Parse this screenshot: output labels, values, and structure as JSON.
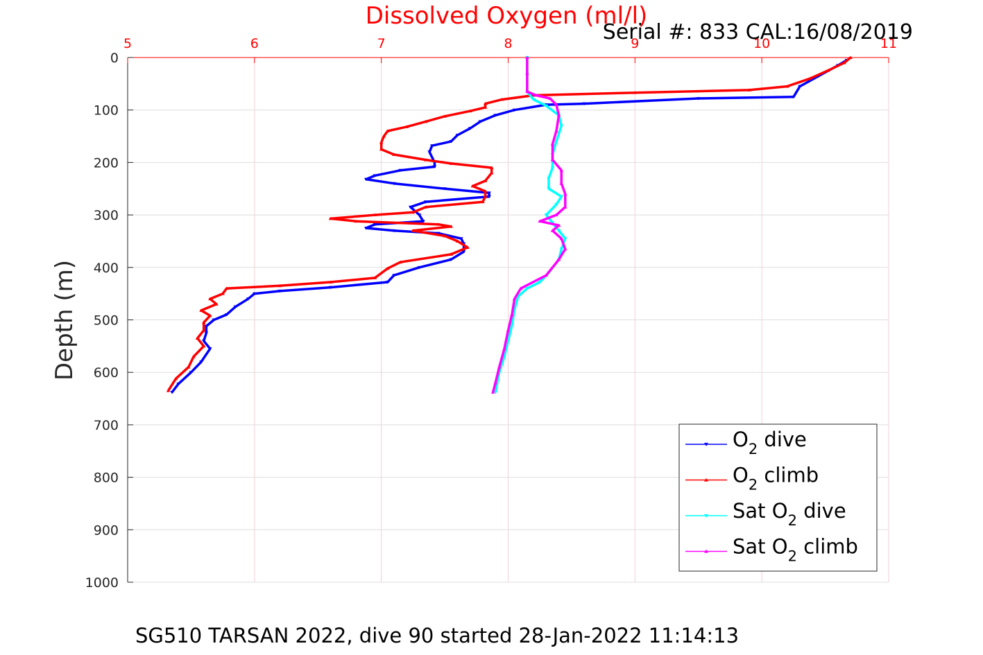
{
  "chart_data": {
    "type": "line",
    "title": "Dissolved Oxygen (ml/l)",
    "subtitle": "Serial #: 833  CAL:16/08/2019",
    "xlabel": "Dissolved Oxygen (ml/l)",
    "ylabel": "Depth (m)",
    "footer": "SG510 TARSAN 2022, dive 90 started 28-Jan-2022 11:14:13",
    "xlim": [
      5,
      11
    ],
    "ylim": [
      0,
      1000
    ],
    "y_reversed": true,
    "x_axis_position": "top",
    "x_ticks": [
      "5",
      "6",
      "7",
      "8",
      "9",
      "10",
      "11"
    ],
    "y_ticks": [
      "0",
      "100",
      "200",
      "300",
      "400",
      "500",
      "600",
      "700",
      "800",
      "900",
      "1000"
    ],
    "grid": true,
    "legend_position": "bottom-right",
    "legend": [
      {
        "prefix": "O",
        "sub": "2",
        "suffix": " dive",
        "color": "#0000ff",
        "marker": "down-triangle"
      },
      {
        "prefix": "O",
        "sub": "2",
        "suffix": " climb",
        "color": "#ff0000",
        "marker": "up-triangle"
      },
      {
        "prefix": "Sat O",
        "sub": "2",
        "suffix": " dive",
        "color": "#00ffff",
        "marker": "down-triangle"
      },
      {
        "prefix": "Sat O",
        "sub": "2",
        "suffix": " climb",
        "color": "#ff00ff",
        "marker": "up-triangle"
      }
    ],
    "series": [
      {
        "name": "O2 dive",
        "color": "#0000ff",
        "marker": "down-triangle",
        "points": [
          [
            10.67,
            5
          ],
          [
            10.6,
            15
          ],
          [
            10.45,
            35
          ],
          [
            10.3,
            55
          ],
          [
            10.25,
            75
          ],
          [
            9.5,
            78
          ],
          [
            8.6,
            88
          ],
          [
            8.3,
            90
          ],
          [
            8.05,
            100
          ],
          [
            7.9,
            110
          ],
          [
            7.78,
            122
          ],
          [
            7.7,
            135
          ],
          [
            7.6,
            148
          ],
          [
            7.55,
            160
          ],
          [
            7.4,
            168
          ],
          [
            7.38,
            180
          ],
          [
            7.42,
            200
          ],
          [
            7.42,
            208
          ],
          [
            7.15,
            215
          ],
          [
            6.95,
            225
          ],
          [
            6.88,
            232
          ],
          [
            7.1,
            240
          ],
          [
            7.5,
            250
          ],
          [
            7.85,
            258
          ],
          [
            7.85,
            265
          ],
          [
            7.35,
            275
          ],
          [
            7.23,
            285
          ],
          [
            7.3,
            300
          ],
          [
            7.33,
            312
          ],
          [
            6.95,
            318
          ],
          [
            6.88,
            325
          ],
          [
            7.1,
            330
          ],
          [
            7.45,
            335
          ],
          [
            7.63,
            345
          ],
          [
            7.65,
            355
          ],
          [
            7.65,
            370
          ],
          [
            7.55,
            385
          ],
          [
            7.3,
            400
          ],
          [
            7.1,
            415
          ],
          [
            7.05,
            428
          ],
          [
            6.6,
            438
          ],
          [
            6.2,
            445
          ],
          [
            6.0,
            450
          ],
          [
            5.95,
            460
          ],
          [
            5.85,
            475
          ],
          [
            5.78,
            490
          ],
          [
            5.68,
            500
          ],
          [
            5.62,
            512
          ],
          [
            5.62,
            525
          ],
          [
            5.6,
            540
          ],
          [
            5.65,
            555
          ],
          [
            5.58,
            580
          ],
          [
            5.5,
            600
          ],
          [
            5.4,
            622
          ],
          [
            5.35,
            638
          ]
        ]
      },
      {
        "name": "O2 climb",
        "color": "#ff0000",
        "marker": "up-triangle",
        "points": [
          [
            10.7,
            0
          ],
          [
            10.65,
            10
          ],
          [
            10.52,
            25
          ],
          [
            10.38,
            40
          ],
          [
            10.2,
            55
          ],
          [
            9.9,
            62
          ],
          [
            9.0,
            67
          ],
          [
            8.2,
            72
          ],
          [
            7.95,
            80
          ],
          [
            7.82,
            88
          ],
          [
            7.82,
            95
          ],
          [
            7.7,
            102
          ],
          [
            7.5,
            112
          ],
          [
            7.35,
            122
          ],
          [
            7.2,
            132
          ],
          [
            7.05,
            140
          ],
          [
            7.02,
            150
          ],
          [
            7.0,
            162
          ],
          [
            7.0,
            175
          ],
          [
            7.1,
            185
          ],
          [
            7.35,
            195
          ],
          [
            7.55,
            202
          ],
          [
            7.87,
            210
          ],
          [
            7.87,
            220
          ],
          [
            7.82,
            235
          ],
          [
            7.72,
            245
          ],
          [
            7.82,
            255
          ],
          [
            7.82,
            265
          ],
          [
            7.8,
            275
          ],
          [
            7.35,
            285
          ],
          [
            7.25,
            295
          ],
          [
            6.95,
            300
          ],
          [
            6.6,
            307
          ],
          [
            6.8,
            312
          ],
          [
            7.45,
            318
          ],
          [
            7.55,
            322
          ],
          [
            7.25,
            330
          ],
          [
            7.5,
            340
          ],
          [
            7.6,
            350
          ],
          [
            7.68,
            362
          ],
          [
            7.55,
            375
          ],
          [
            7.15,
            390
          ],
          [
            7.05,
            402
          ],
          [
            6.95,
            420
          ],
          [
            6.6,
            428
          ],
          [
            6.2,
            435
          ],
          [
            5.78,
            440
          ],
          [
            5.75,
            450
          ],
          [
            5.65,
            460
          ],
          [
            5.7,
            470
          ],
          [
            5.58,
            482
          ],
          [
            5.65,
            492
          ],
          [
            5.6,
            505
          ],
          [
            5.6,
            520
          ],
          [
            5.55,
            535
          ],
          [
            5.6,
            550
          ],
          [
            5.52,
            570
          ],
          [
            5.48,
            590
          ],
          [
            5.38,
            612
          ],
          [
            5.32,
            635
          ]
        ]
      },
      {
        "name": "Sat O2 dive",
        "color": "#00ffff",
        "marker": "down-triangle",
        "points": [
          [
            8.15,
            0
          ],
          [
            8.15,
            30
          ],
          [
            8.15,
            65
          ],
          [
            8.2,
            80
          ],
          [
            8.3,
            92
          ],
          [
            8.4,
            110
          ],
          [
            8.42,
            130
          ],
          [
            8.38,
            160
          ],
          [
            8.35,
            185
          ],
          [
            8.35,
            210
          ],
          [
            8.32,
            230
          ],
          [
            8.32,
            250
          ],
          [
            8.42,
            265
          ],
          [
            8.38,
            280
          ],
          [
            8.3,
            300
          ],
          [
            8.35,
            315
          ],
          [
            8.4,
            330
          ],
          [
            8.45,
            345
          ],
          [
            8.42,
            365
          ],
          [
            8.4,
            385
          ],
          [
            8.32,
            410
          ],
          [
            8.25,
            428
          ],
          [
            8.15,
            440
          ],
          [
            8.08,
            455
          ],
          [
            8.05,
            480
          ],
          [
            8.03,
            510
          ],
          [
            8.0,
            540
          ],
          [
            7.97,
            570
          ],
          [
            7.93,
            600
          ],
          [
            7.9,
            638
          ]
        ]
      },
      {
        "name": "Sat O2 climb",
        "color": "#ff00ff",
        "marker": "up-triangle",
        "points": [
          [
            8.15,
            0
          ],
          [
            8.15,
            30
          ],
          [
            8.15,
            65
          ],
          [
            8.22,
            72
          ],
          [
            8.33,
            78
          ],
          [
            8.38,
            90
          ],
          [
            8.4,
            110
          ],
          [
            8.38,
            140
          ],
          [
            8.35,
            165
          ],
          [
            8.35,
            195
          ],
          [
            8.42,
            215
          ],
          [
            8.42,
            240
          ],
          [
            8.45,
            260
          ],
          [
            8.45,
            285
          ],
          [
            8.38,
            300
          ],
          [
            8.25,
            312
          ],
          [
            8.4,
            320
          ],
          [
            8.35,
            330
          ],
          [
            8.42,
            345
          ],
          [
            8.45,
            365
          ],
          [
            8.4,
            385
          ],
          [
            8.3,
            415
          ],
          [
            8.1,
            440
          ],
          [
            8.05,
            460
          ],
          [
            8.03,
            490
          ],
          [
            8.0,
            520
          ],
          [
            7.97,
            555
          ],
          [
            7.93,
            590
          ],
          [
            7.9,
            620
          ],
          [
            7.88,
            638
          ]
        ]
      }
    ]
  }
}
